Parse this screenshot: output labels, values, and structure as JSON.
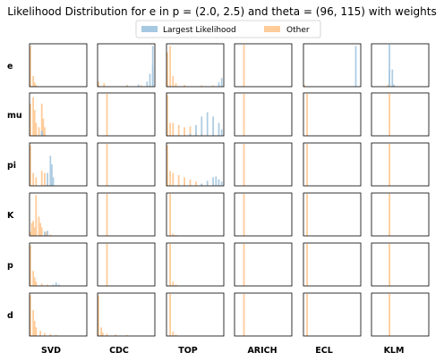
{
  "chart_data": {
    "type": "histogram-grid",
    "title": "Likelihood Distribution for e in p = (2.0, 2.5) and theta = (96, 115) with weights",
    "rows": [
      "e",
      "mu",
      "pi",
      "K",
      "p",
      "d"
    ],
    "columns": [
      "SVD",
      "CDC",
      "TOP",
      "ARICH",
      "ECL",
      "KLM"
    ],
    "legend": {
      "placement": "top-center",
      "entries": [
        {
          "name": "Largest Likelihood",
          "color": "#a6c8e0"
        },
        {
          "name": "Other",
          "color": "#ffcc9a"
        }
      ]
    },
    "x_range": [
      0,
      1
    ],
    "y_range": [
      0,
      1
    ],
    "bins": 40,
    "axes_ticks": "hidden",
    "overlap_color": "#d9b7a8",
    "panels": [
      [
        {
          "largest": [],
          "other": [
            [
              0,
              0.08
            ],
            [
              0.02,
              0.95
            ],
            [
              0.05,
              0.25
            ],
            [
              0.08,
              0.1
            ],
            [
              0.1,
              0.04
            ]
          ]
        },
        {
          "largest": [
            [
              0.5,
              0.02
            ],
            [
              0.7,
              0.05
            ],
            [
              0.85,
              0.12
            ],
            [
              0.92,
              0.3
            ],
            [
              0.95,
              0.5
            ],
            [
              0.97,
              0.95
            ]
          ],
          "other": [
            [
              0,
              0.05
            ],
            [
              0.02,
              0.12
            ],
            [
              0.1,
              0.08
            ],
            [
              0.5,
              0.04
            ],
            [
              0.75,
              0.03
            ],
            [
              0.9,
              0.03
            ]
          ]
        },
        {
          "largest": [
            [
              0.9,
              0.1
            ],
            [
              0.97,
              0.2
            ]
          ],
          "other": [
            [
              0,
              0.3
            ],
            [
              0.02,
              0.8
            ],
            [
              0.05,
              0.95
            ],
            [
              0.1,
              0.25
            ],
            [
              0.15,
              0.08
            ],
            [
              0.3,
              0.04
            ],
            [
              0.6,
              0.03
            ],
            [
              0.8,
              0.03
            ]
          ]
        },
        {
          "largest": [],
          "other": [
            [
              0.15,
              0.98
            ]
          ]
        },
        {
          "largest": [
            [
              0.92,
              0.95
            ]
          ],
          "other": [
            [
              0.02,
              0.05
            ]
          ]
        },
        {
          "largest": [
            [
              0.3,
              0.4
            ],
            [
              0.32,
              0.98
            ],
            [
              0.35,
              0.4
            ],
            [
              0.38,
              0.05
            ]
          ],
          "other": [
            [
              0.28,
              0.05
            ]
          ]
        }
      ],
      [
        {
          "largest": [
            [
              0.2,
              0.1
            ],
            [
              0.22,
              0.12
            ]
          ],
          "other": [
            [
              0,
              0.15
            ],
            [
              0.02,
              0.75
            ],
            [
              0.05,
              0.9
            ],
            [
              0.08,
              0.6
            ],
            [
              0.1,
              0.3
            ],
            [
              0.15,
              0.2
            ],
            [
              0.2,
              0.75
            ],
            [
              0.23,
              0.4
            ],
            [
              0.25,
              0.2
            ]
          ]
        },
        {
          "largest": [],
          "other": [
            [
              0.15,
              0.98
            ]
          ]
        },
        {
          "largest": [
            [
              0.4,
              0.05
            ],
            [
              0.5,
              0.25
            ],
            [
              0.6,
              0.45
            ],
            [
              0.7,
              0.55
            ],
            [
              0.8,
              0.45
            ],
            [
              0.9,
              0.3
            ],
            [
              0.97,
              0.15
            ]
          ],
          "other": [
            [
              0,
              0.2
            ],
            [
              0.02,
              0.95
            ],
            [
              0.05,
              0.3
            ],
            [
              0.1,
              0.3
            ],
            [
              0.2,
              0.25
            ],
            [
              0.3,
              0.2
            ],
            [
              0.4,
              0.22
            ],
            [
              0.5,
              0.1
            ],
            [
              0.6,
              0.05
            ]
          ]
        },
        {
          "largest": [],
          "other": [
            [
              0.15,
              0.98
            ]
          ]
        },
        {
          "largest": [],
          "other": [
            [
              0.05,
              0.98
            ]
          ]
        },
        {
          "largest": [],
          "other": [
            [
              0.3,
              0.98
            ]
          ]
        }
      ],
      [
        {
          "largest": [
            [
              0.3,
              0.3
            ],
            [
              0.35,
              0.7
            ],
            [
              0.38,
              0.5
            ],
            [
              0.4,
              0.2
            ]
          ],
          "other": [
            [
              0,
              0.2
            ],
            [
              0.02,
              0.95
            ],
            [
              0.05,
              0.3
            ],
            [
              0.1,
              0.2
            ],
            [
              0.2,
              0.35
            ],
            [
              0.25,
              0.3
            ],
            [
              0.3,
              0.05
            ]
          ]
        },
        {
          "largest": [],
          "other": [
            [
              0.15,
              0.98
            ]
          ]
        },
        {
          "largest": [
            [
              0.6,
              0.05
            ],
            [
              0.7,
              0.12
            ],
            [
              0.8,
              0.2
            ],
            [
              0.85,
              0.22
            ],
            [
              0.9,
              0.15
            ],
            [
              0.97,
              0.1
            ]
          ],
          "other": [
            [
              0,
              0.2
            ],
            [
              0.02,
              0.95
            ],
            [
              0.05,
              0.35
            ],
            [
              0.1,
              0.3
            ],
            [
              0.2,
              0.25
            ],
            [
              0.3,
              0.2
            ],
            [
              0.4,
              0.15
            ],
            [
              0.5,
              0.1
            ],
            [
              0.6,
              0.05
            ]
          ]
        },
        {
          "largest": [],
          "other": [
            [
              0.15,
              0.98
            ]
          ]
        },
        {
          "largest": [],
          "other": [
            [
              0.05,
              0.98
            ]
          ]
        },
        {
          "largest": [],
          "other": [
            [
              0.3,
              0.98
            ]
          ]
        }
      ],
      [
        {
          "largest": [
            [
              0.25,
              0.1
            ],
            [
              0.3,
              0.12
            ]
          ],
          "other": [
            [
              0,
              0.1
            ],
            [
              0.03,
              0.3
            ],
            [
              0.06,
              0.35
            ],
            [
              0.08,
              0.2
            ],
            [
              0.1,
              0.4
            ],
            [
              0.12,
              0.95
            ],
            [
              0.15,
              0.45
            ],
            [
              0.18,
              0.3
            ],
            [
              0.22,
              0.2
            ],
            [
              0.28,
              0.1
            ],
            [
              0.35,
              0.03
            ]
          ]
        },
        {
          "largest": [],
          "other": [
            [
              0.15,
              0.98
            ]
          ]
        },
        {
          "largest": [],
          "other": [
            [
              0.05,
              0.98
            ],
            [
              0.1,
              0.05
            ],
            [
              0.15,
              0.02
            ]
          ]
        },
        {
          "largest": [],
          "other": [
            [
              0.15,
              0.98
            ]
          ]
        },
        {
          "largest": [],
          "other": [
            [
              0.05,
              0.98
            ]
          ]
        },
        {
          "largest": [],
          "other": [
            [
              0.3,
              0.98
            ]
          ]
        }
      ],
      [
        {
          "largest": [
            [
              0.4,
              0.03
            ],
            [
              0.45,
              0.08
            ],
            [
              0.5,
              0.03
            ]
          ],
          "other": [
            [
              0,
              0.2
            ],
            [
              0.02,
              0.95
            ],
            [
              0.05,
              0.35
            ],
            [
              0.08,
              0.2
            ],
            [
              0.12,
              0.1
            ],
            [
              0.2,
              0.05
            ],
            [
              0.3,
              0.03
            ]
          ]
        },
        {
          "largest": [],
          "other": [
            [
              0.15,
              0.98
            ]
          ]
        },
        {
          "largest": [],
          "other": [
            [
              0.05,
              0.98
            ],
            [
              0.1,
              0.1
            ],
            [
              0.15,
              0.03
            ]
          ]
        },
        {
          "largest": [],
          "other": [
            [
              0.15,
              0.98
            ]
          ]
        },
        {
          "largest": [],
          "other": [
            [
              0.05,
              0.98
            ]
          ]
        },
        {
          "largest": [],
          "other": [
            [
              0.3,
              0.98
            ]
          ]
        }
      ],
      [
        {
          "largest": [],
          "other": [
            [
              0,
              0.3
            ],
            [
              0.02,
              0.95
            ],
            [
              0.05,
              0.6
            ],
            [
              0.08,
              0.35
            ],
            [
              0.12,
              0.2
            ],
            [
              0.18,
              0.12
            ],
            [
              0.25,
              0.07
            ],
            [
              0.35,
              0.04
            ],
            [
              0.45,
              0.02
            ]
          ]
        },
        {
          "largest": [],
          "other": [
            [
              0,
              0.05
            ],
            [
              0.02,
              0.95
            ],
            [
              0.05,
              0.2
            ],
            [
              0.08,
              0.08
            ],
            [
              0.15,
              0.05
            ],
            [
              0.3,
              0.03
            ],
            [
              0.5,
              0.02
            ]
          ]
        },
        {
          "largest": [],
          "other": [
            [
              0.05,
              0.98
            ],
            [
              0.1,
              0.1
            ],
            [
              0.15,
              0.03
            ]
          ]
        },
        {
          "largest": [],
          "other": [
            [
              0.15,
              0.98
            ]
          ]
        },
        {
          "largest": [],
          "other": [
            [
              0.05,
              0.98
            ]
          ]
        },
        {
          "largest": [],
          "other": [
            [
              0.3,
              0.98
            ]
          ]
        }
      ]
    ]
  }
}
